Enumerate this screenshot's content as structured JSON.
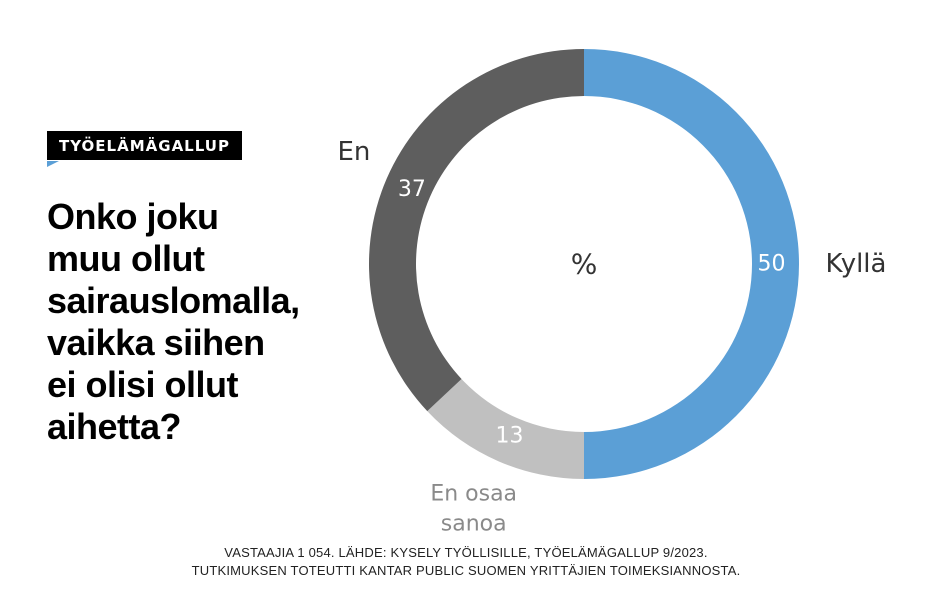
{
  "header": {
    "brand": "TYÖELÄMÄGALLUP",
    "question_lines": [
      "Onko joku",
      "muu ollut",
      "sairauslomalla,",
      "vaikka siihen",
      "ei olisi ollut",
      "aihetta?"
    ]
  },
  "chart_data": {
    "type": "pie",
    "style": "donut",
    "center_label": "%",
    "slices": [
      {
        "label": "Kyllä",
        "value": 50,
        "color": "#5b9fd6"
      },
      {
        "label": "En osaa sanoa",
        "label_lines": [
          "En osaa",
          "sanoa"
        ],
        "value": 13,
        "color": "#c0c0c0"
      },
      {
        "label": "En",
        "value": 37,
        "color": "#5e5e5e"
      }
    ]
  },
  "footer": {
    "line1": "VASTAAJIA 1 054. LÄHDE: KYSELY TYÖLLISILLE, TYÖELÄMÄGALLUP 9/2023.",
    "line2": "TUTKIMUKSEN TOTEUTTI KANTAR PUBLIC SUOMEN YRITTÄJIEN TOIMEKSIANNOSTA."
  }
}
